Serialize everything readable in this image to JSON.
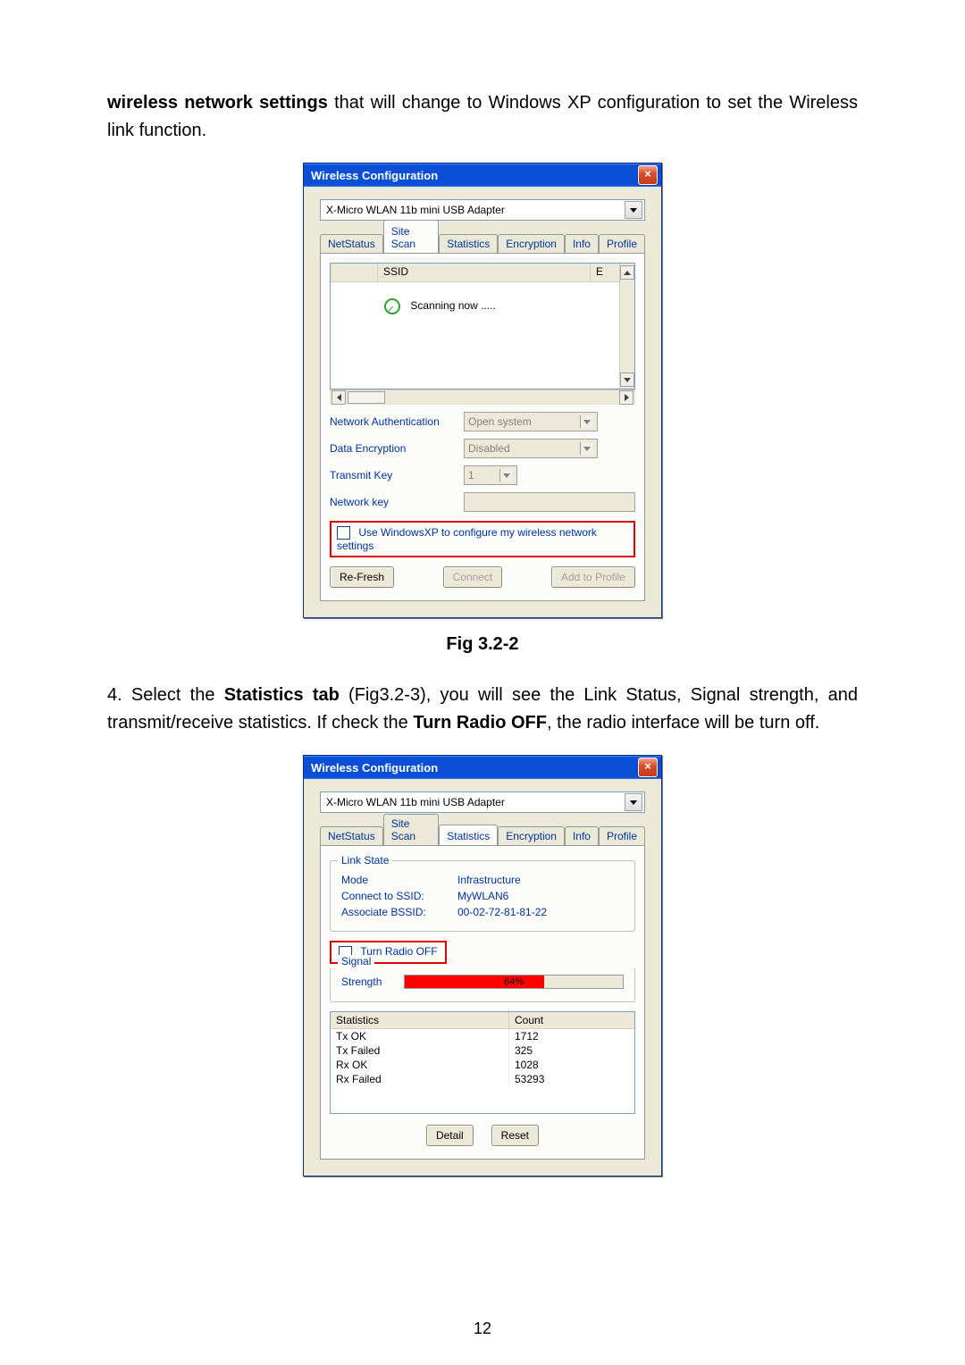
{
  "intro": {
    "bold": "wireless network settings",
    "rest": " that will change to Windows XP configuration to set the Wireless link function."
  },
  "dialog1": {
    "title": "Wireless Configuration",
    "adapter": "X-Micro WLAN 11b mini USB Adapter",
    "tabs": [
      "NetStatus",
      "Site Scan",
      "Statistics",
      "Encryption",
      "Info",
      "Profile"
    ],
    "ssid_header": "SSID",
    "e_header": "E",
    "scanning": "Scanning now .....",
    "net_auth_label": "Network Authentication",
    "net_auth_value": "Open system",
    "data_enc_label": "Data Encryption",
    "data_enc_value": "Disabled",
    "transmit_key_label": "Transmit Key",
    "transmit_key_value": "1",
    "network_key_label": "Network key",
    "use_xp_label": "Use WindowsXP to configure my wireless network settings",
    "btn_refresh": "Re-Fresh",
    "btn_connect": "Connect",
    "btn_addprofile": "Add to Profile"
  },
  "caption1": "Fig 3.2-2",
  "para2": {
    "pre": "4. Select the ",
    "b1": "Statistics tab",
    "mid": " (Fig3.2-3), you will see the Link Status, Signal strength, and transmit/receive statistics. If check the ",
    "b2": "Turn Radio OFF",
    "post": ", the radio interface will be turn off."
  },
  "dialog2": {
    "title": "Wireless Configuration",
    "adapter": "X-Micro WLAN 11b mini USB Adapter",
    "tabs": [
      "NetStatus",
      "Site Scan",
      "Statistics",
      "Encryption",
      "Info",
      "Profile"
    ],
    "linkstate_title": "Link State",
    "mode_label": "Mode",
    "mode_value": "Infrastructure",
    "ssid_label": "Connect to SSID:",
    "ssid_value": "MyWLAN6",
    "bssid_label": "Associate BSSID:",
    "bssid_value": "00-02-72-81-81-22",
    "turn_radio_off": "Turn Radio OFF",
    "signal_title": "Signal",
    "strength_label": "Strength",
    "strength_pct": "64%",
    "strength_fill": 64,
    "stats_header": [
      "Statistics",
      "Count"
    ],
    "stats_rows": [
      [
        "Tx OK",
        "1712"
      ],
      [
        "Tx Failed",
        "325"
      ],
      [
        "Rx OK",
        "1028"
      ],
      [
        "Rx Failed",
        "53293"
      ]
    ],
    "btn_detail": "Detail",
    "btn_reset": "Reset"
  },
  "page_number": "12"
}
